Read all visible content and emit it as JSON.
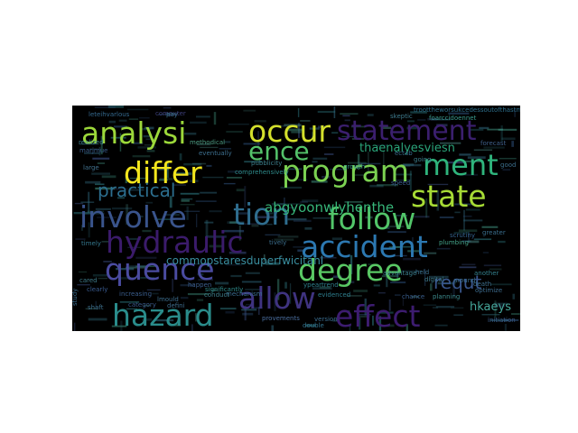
{
  "word_cloud": {
    "background": "#000000",
    "words": [
      {
        "text": "analysi",
        "color": "#9cd83a"
      },
      {
        "text": "occur",
        "color": "#d4e02c"
      },
      {
        "text": "statement",
        "color": "#3b1f6e"
      },
      {
        "text": "ence",
        "color": "#54c26a"
      },
      {
        "text": "differ",
        "color": "#f2e51d"
      },
      {
        "text": "program",
        "color": "#7bd151"
      },
      {
        "text": "ment",
        "color": "#2fb47c"
      },
      {
        "text": "state",
        "color": "#a6db35"
      },
      {
        "text": "practical",
        "color": "#2c6e8e"
      },
      {
        "text": "involve",
        "color": "#3a548c"
      },
      {
        "text": "tion",
        "color": "#2f6d8e"
      },
      {
        "text": "follow",
        "color": "#52c569"
      },
      {
        "text": "hydraulic",
        "color": "#3b1b6b"
      },
      {
        "text": "accident",
        "color": "#2c78b1"
      },
      {
        "text": "quence",
        "color": "#4a4ba0"
      },
      {
        "text": "degree",
        "color": "#59c864"
      },
      {
        "text": "allow",
        "color": "#3f3380"
      },
      {
        "text": "hazard",
        "color": "#2a8c8b"
      },
      {
        "text": "effect",
        "color": "#3d1c70"
      },
      {
        "text": "requt",
        "color": "#39568c"
      },
      {
        "text": "thaenalyesviesn",
        "color": "#2aa57a"
      },
      {
        "text": "abgyoonwlyhenthe",
        "color": "#37b77a"
      },
      {
        "text": "commopstaresduperfwicitahl",
        "color": "#3a8fa0"
      },
      {
        "text": "hkaeys",
        "color": "#46a79a"
      },
      {
        "text": "forecast",
        "color": "#3f5f8a"
      },
      {
        "text": "computer",
        "color": "#3d3f7a"
      },
      {
        "text": "skeptic",
        "color": "#3e7b8e"
      },
      {
        "text": "troottheworsukcedessoutofthastmodearyn",
        "color": "#2d6f8c"
      },
      {
        "text": "foarccidoennet",
        "color": "#3a9a8c"
      },
      {
        "text": "increasing",
        "color": "#3a5d8c"
      },
      {
        "text": "significantly",
        "color": "#2e8a8a"
      },
      {
        "text": "mechanism",
        "color": "#3a6d90"
      },
      {
        "text": "planning",
        "color": "#3c8b8c"
      },
      {
        "text": "optimize",
        "color": "#3d6c8e"
      },
      {
        "text": "initiation",
        "color": "#3a5c8a"
      },
      {
        "text": "ypeartrend",
        "color": "#2e7f8c"
      },
      {
        "text": "evidenced",
        "color": "#2e7e8e"
      },
      {
        "text": "plumbing",
        "color": "#43a287"
      },
      {
        "text": "around",
        "color": "#3a6e8c"
      },
      {
        "text": "digital",
        "color": "#3f7a8a"
      },
      {
        "text": "chance",
        "color": "#3a5f8e"
      },
      {
        "text": "provements",
        "color": "#4b6fa0"
      },
      {
        "text": "version",
        "color": "#3a6c8e"
      },
      {
        "text": "double",
        "color": "#32728e"
      },
      {
        "text": "lmould",
        "color": "#3d6d8d"
      },
      {
        "text": "category",
        "color": "#3b5a8c"
      },
      {
        "text": "clearly",
        "color": "#3a5c90"
      },
      {
        "text": "cared",
        "color": "#3f7c8a"
      },
      {
        "text": "timely",
        "color": "#35788e"
      },
      {
        "text": "large",
        "color": "#42728f"
      },
      {
        "text": "marjmue",
        "color": "#3b5d8d"
      },
      {
        "text": "realized",
        "color": "#3c7e8c"
      },
      {
        "text": "leteihvarlous",
        "color": "#34698e"
      },
      {
        "text": "methodical",
        "color": "#4c9a80"
      },
      {
        "text": "eventually",
        "color": "#3d6f8e"
      },
      {
        "text": "comprehensively",
        "color": "#2f8c8c"
      },
      {
        "text": "happen",
        "color": "#3c5e8e"
      },
      {
        "text": "conduct",
        "color": "#3e7e8b"
      },
      {
        "text": "growth",
        "color": "#33948b"
      },
      {
        "text": "greater",
        "color": "#3a6d8c"
      },
      {
        "text": "another",
        "color": "#34818e"
      },
      {
        "text": "death",
        "color": "#3d6e8c"
      },
      {
        "text": "good",
        "color": "#3c6f8d"
      },
      {
        "text": "held",
        "color": "#3a708d"
      },
      {
        "text": "advantage",
        "color": "#3b7f8e"
      },
      {
        "text": "defini",
        "color": "#3e6d8d"
      },
      {
        "text": "shaft",
        "color": "#3d6f8c"
      },
      {
        "text": "study",
        "color": "#3b6d8e"
      },
      {
        "text": "scrutiny",
        "color": "#35628e"
      },
      {
        "text": "going",
        "color": "#3c7e8c"
      },
      {
        "text": "speed",
        "color": "#3a5d8c"
      },
      {
        "text": "ectab",
        "color": "#3a6d8e"
      },
      {
        "text": "pubblicity",
        "color": "#3c7f8b"
      },
      {
        "text": "pay",
        "color": "#3b6e8c"
      },
      {
        "text": "tively",
        "color": "#3b6d8c"
      }
    ]
  }
}
